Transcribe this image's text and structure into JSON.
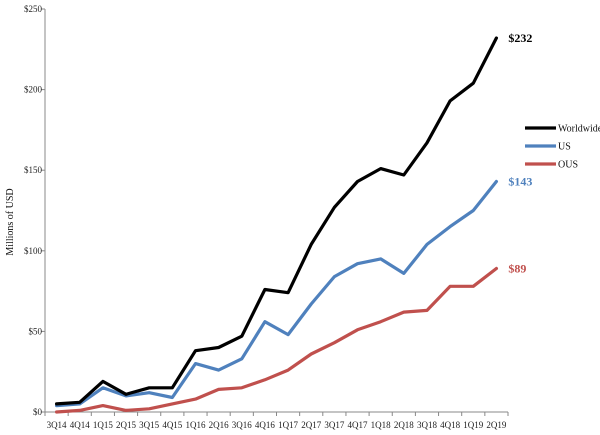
{
  "chart_data": {
    "type": "line",
    "title": "",
    "xlabel": "",
    "ylabel": "Millions of USD",
    "ylim": [
      0,
      250
    ],
    "y_ticks": [
      {
        "value": 0,
        "label": "$0"
      },
      {
        "value": 50,
        "label": "$50"
      },
      {
        "value": 100,
        "label": "$100"
      },
      {
        "value": 150,
        "label": "$150"
      },
      {
        "value": 200,
        "label": "$200"
      },
      {
        "value": 250,
        "label": "$250"
      }
    ],
    "grid": false,
    "legend_position": "right",
    "categories": [
      "3Q14",
      "4Q14",
      "1Q15",
      "2Q15",
      "3Q15",
      "4Q15",
      "1Q16",
      "2Q16",
      "3Q16",
      "4Q16",
      "1Q17",
      "2Q17",
      "3Q17",
      "4Q17",
      "1Q18",
      "2Q18",
      "3Q18",
      "4Q18",
      "1Q19",
      "2Q19"
    ],
    "series": [
      {
        "name": "Worldwide",
        "color": "#000000",
        "values": [
          5,
          6,
          19,
          11,
          15,
          15,
          38,
          40,
          47,
          76,
          74,
          104,
          127,
          143,
          151,
          147,
          167,
          193,
          204,
          232
        ],
        "end_label": "$232"
      },
      {
        "name": "US",
        "color": "#4f81bd",
        "values": [
          4,
          5,
          15,
          10,
          12,
          9,
          30,
          26,
          33,
          56,
          48,
          67,
          84,
          92,
          95,
          86,
          104,
          115,
          125,
          143
        ],
        "end_label": "$143"
      },
      {
        "name": "OUS",
        "color": "#c0504d",
        "values": [
          0,
          1,
          4,
          1,
          2,
          5,
          8,
          14,
          15,
          20,
          26,
          36,
          43,
          51,
          56,
          62,
          63,
          78,
          78,
          89
        ],
        "end_label": "$89"
      }
    ]
  }
}
